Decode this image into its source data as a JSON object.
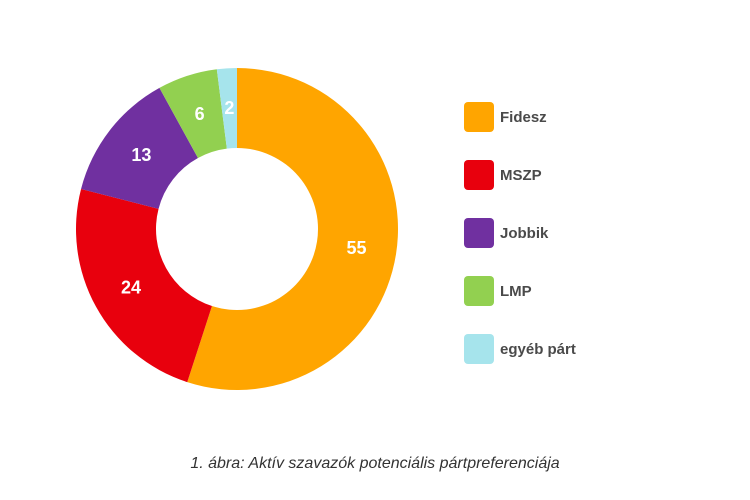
{
  "chart_data": {
    "type": "pie",
    "donut": true,
    "categories": [
      "Fidesz",
      "MSZP",
      "Jobbik",
      "LMP",
      "egyéb párt"
    ],
    "values": [
      55,
      24,
      13,
      6,
      2
    ],
    "colors": [
      "#FFA500",
      "#E8000D",
      "#7030A0",
      "#92D050",
      "#A6E4EC"
    ],
    "legend_position": "right",
    "caption": "1. ábra: Aktív szavazók potenciális pártpreferenciája"
  }
}
